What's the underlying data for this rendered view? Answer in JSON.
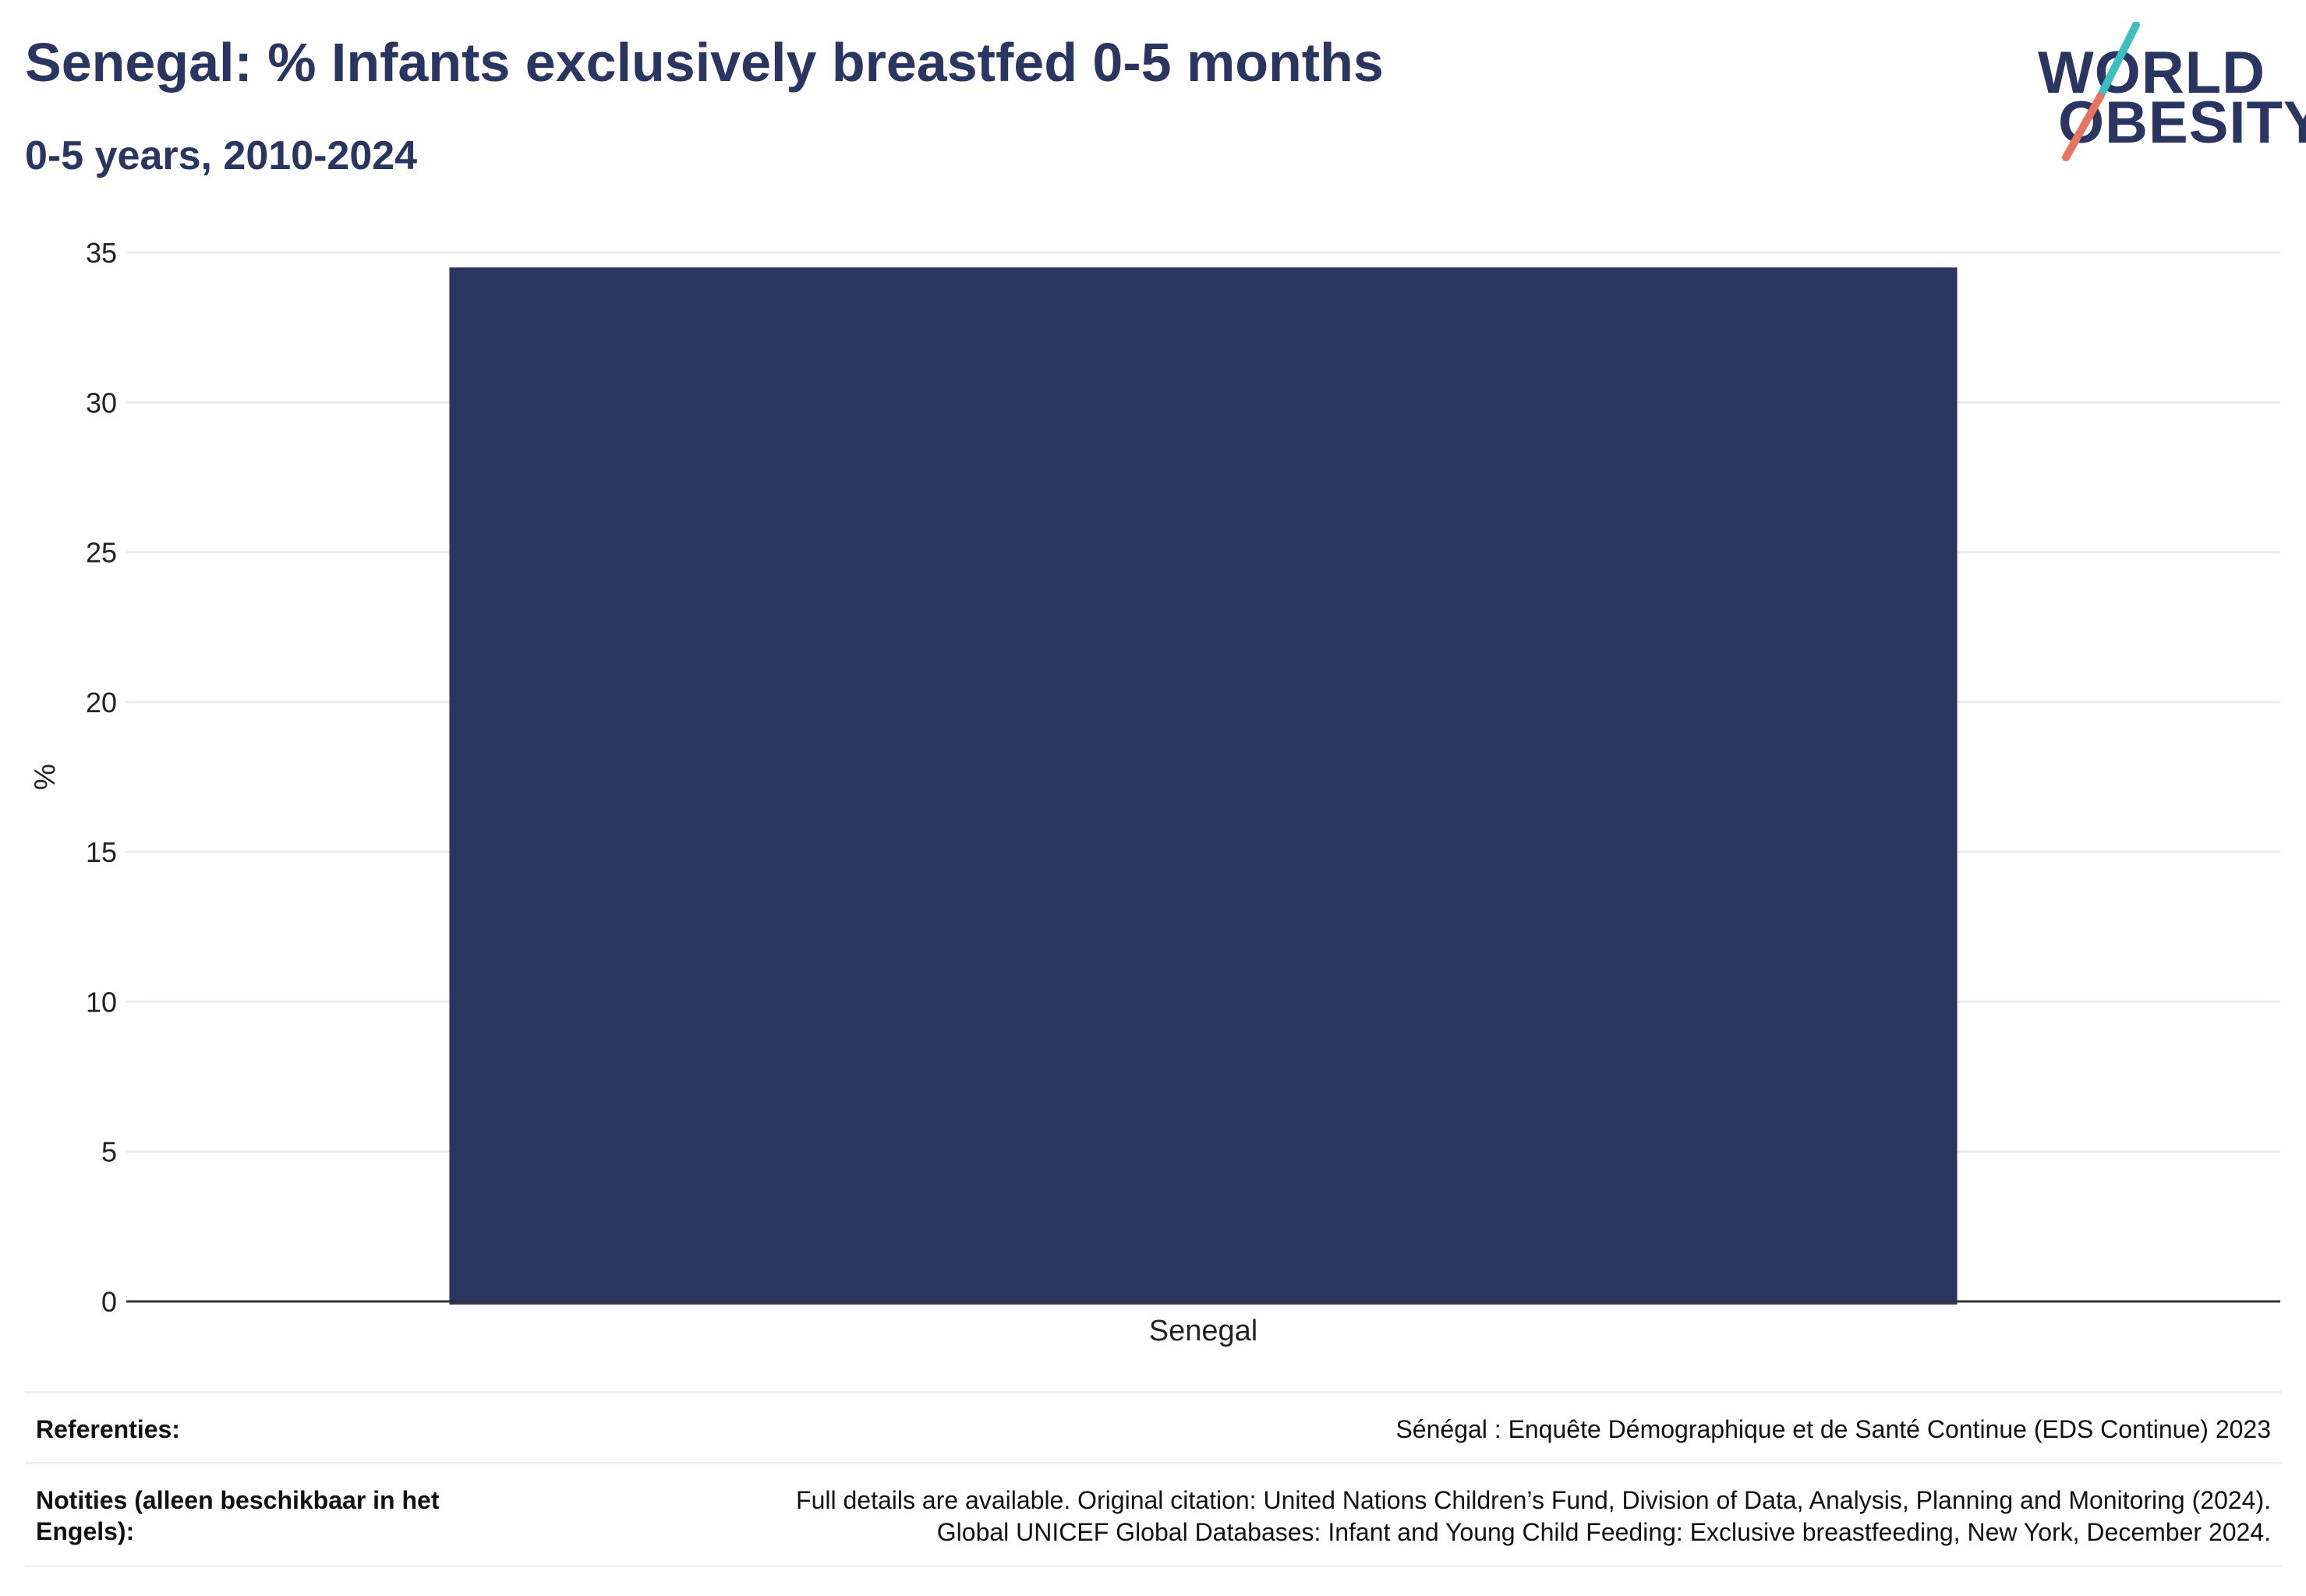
{
  "header": {
    "title": "Senegal: % Infants exclusively breastfed 0-5 months",
    "subtitle": "0-5 years, 2010-2024"
  },
  "logo": {
    "line1": "WORLD",
    "line2": "OBESITY",
    "accent_teal": "#3bbfbf",
    "accent_coral": "#e8735f"
  },
  "chart_data": {
    "type": "bar",
    "categories": [
      "Senegal"
    ],
    "values": [
      34.5
    ],
    "ylabel": "%",
    "xlabel": "",
    "ylim": [
      0,
      35
    ],
    "yticks": [
      0,
      5,
      10,
      15,
      20,
      25,
      30,
      35
    ],
    "grid": true,
    "bar_color": "#2a3561"
  },
  "footer": {
    "references_label": "Referenties:",
    "references_value": "Sénégal : Enquête Démographique et de Santé Continue (EDS Continue) 2023",
    "notes_label": "Notities (alleen beschikbaar in het Engels):",
    "notes_line1": "Full details are available. Original citation: United Nations Children’s Fund, Division of Data, Analysis, Planning and Monitoring (2024).",
    "notes_line2": "Global UNICEF Global Databases: Infant and Young Child Feeding: Exclusive breastfeeding, New York, December 2024."
  }
}
